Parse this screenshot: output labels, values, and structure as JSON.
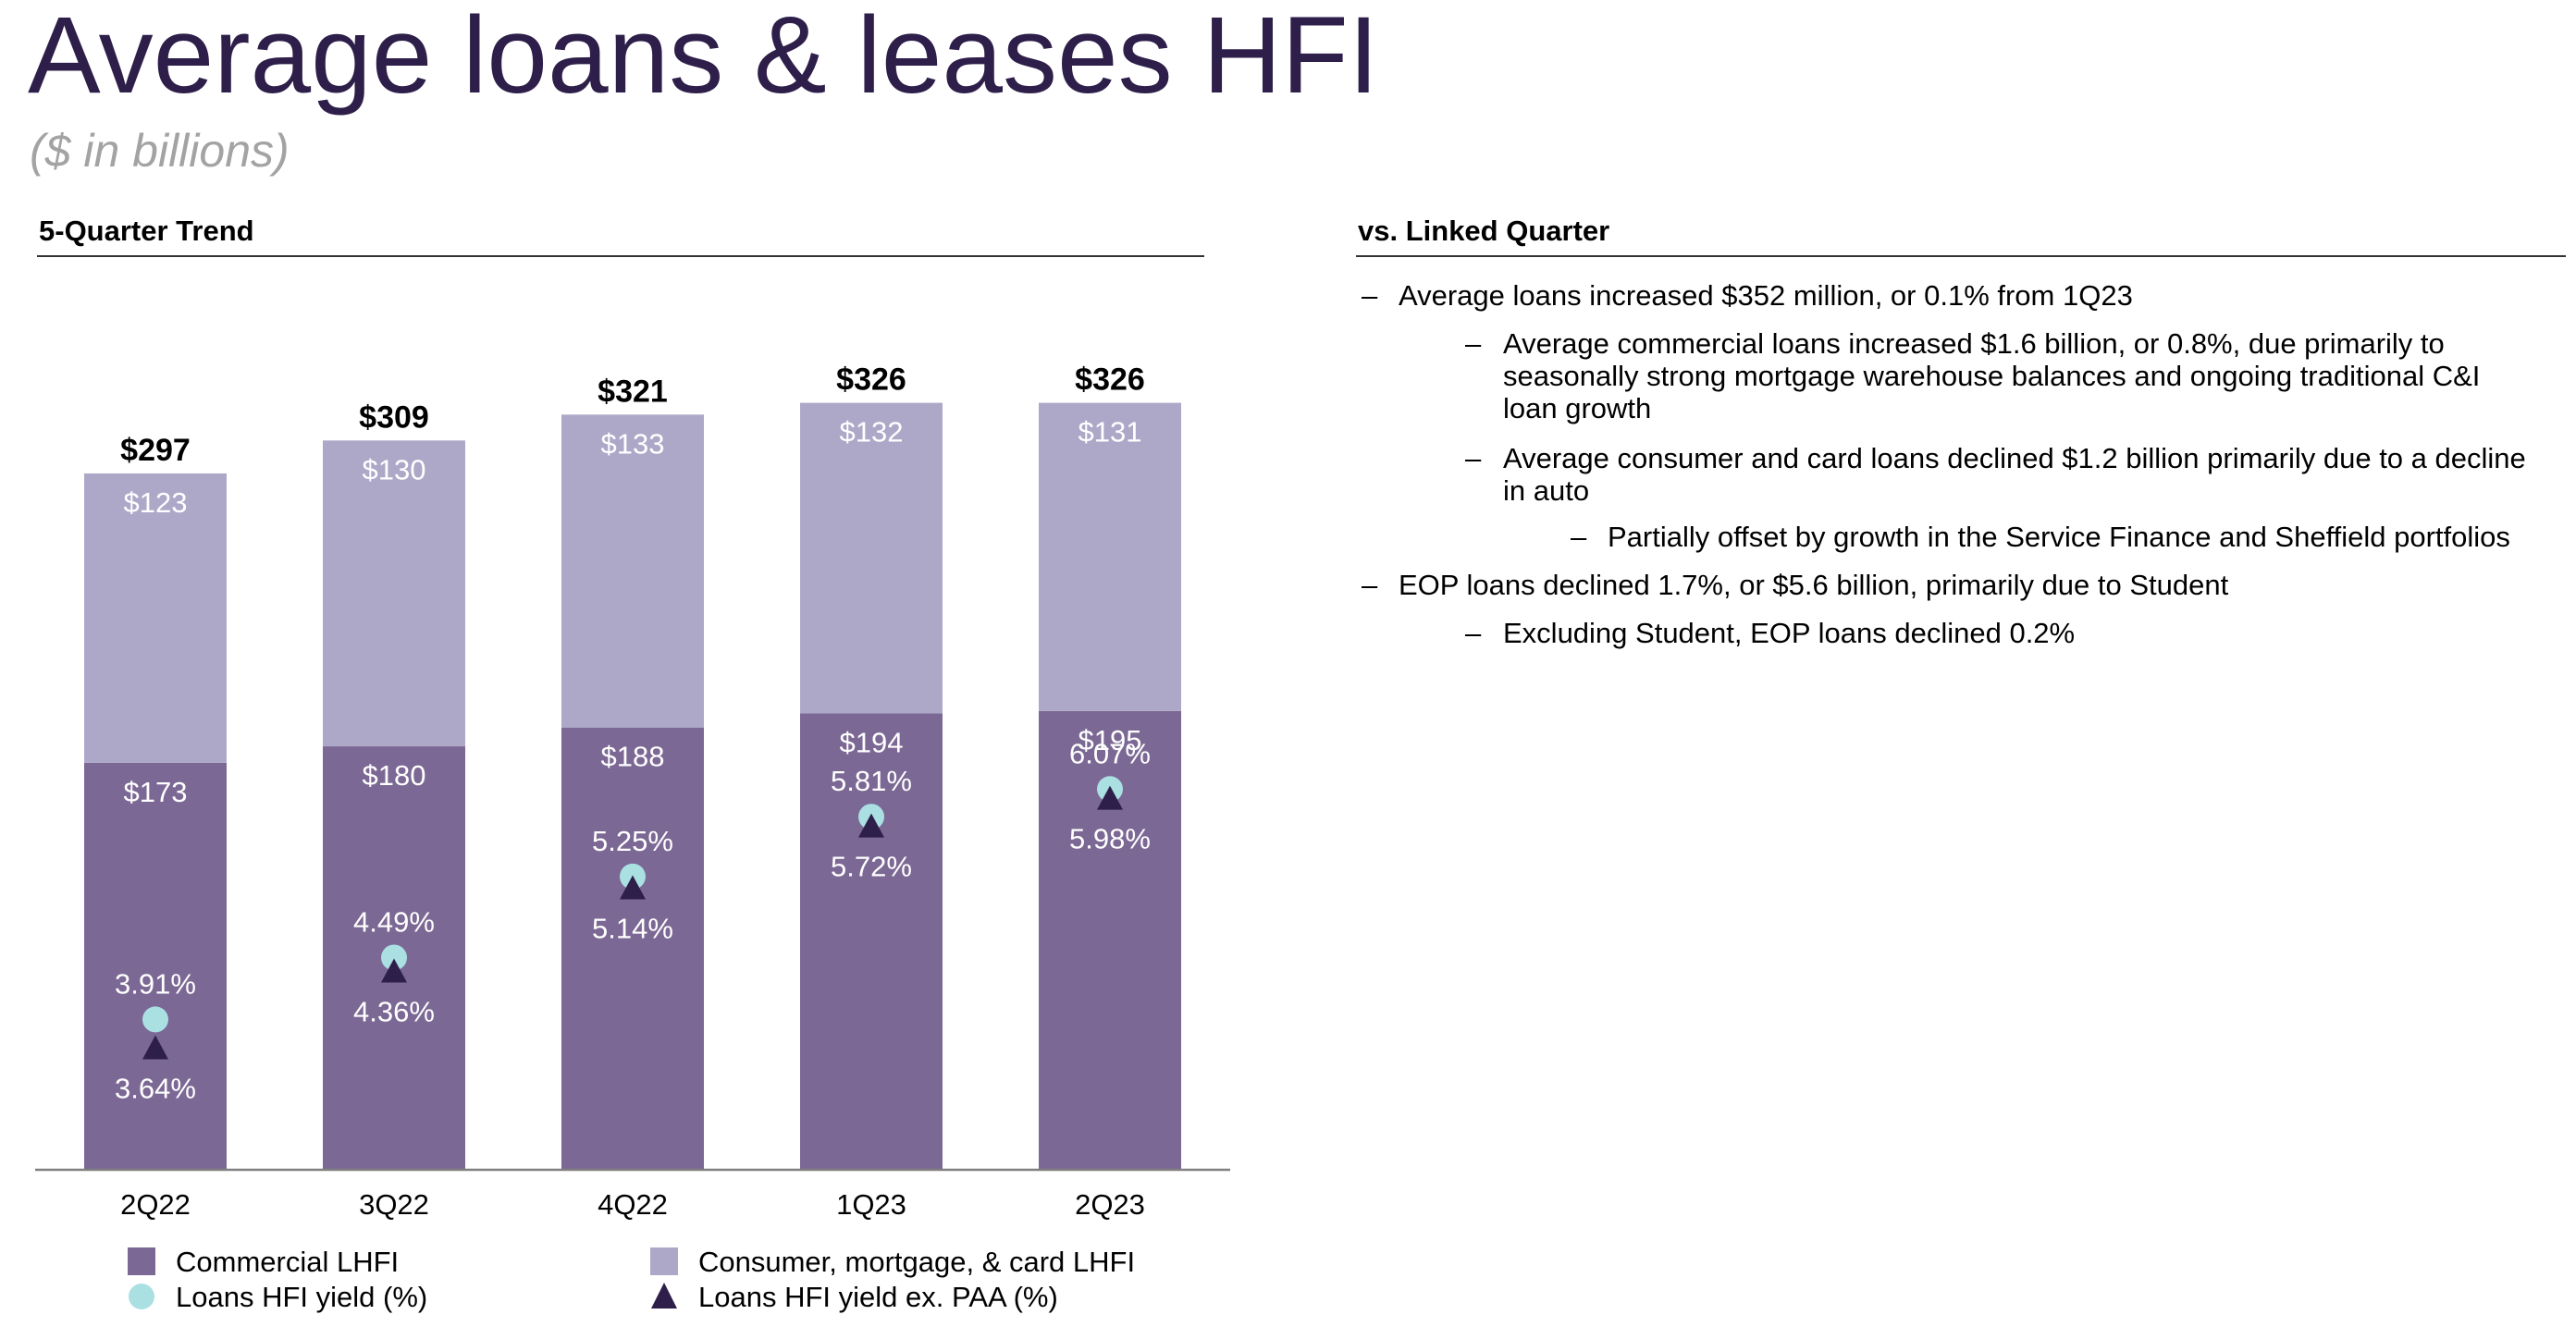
{
  "header": {
    "title": "Average loans & leases HFI",
    "subtitle": "($ in billions)"
  },
  "left_panel": {
    "heading": "5-Quarter Trend"
  },
  "right_panel": {
    "heading": "vs. Linked Quarter",
    "bullets": [
      {
        "level": 1,
        "marker": "–",
        "lines": [
          "Average loans increased $352 million, or 0.1% from 1Q23"
        ]
      },
      {
        "level": 2,
        "marker": "–",
        "lines": [
          "Average commercial loans increased $1.6 billion, or 0.8%, due primarily to",
          "seasonally strong mortgage warehouse balances and ongoing traditional C&I",
          "loan growth"
        ]
      },
      {
        "level": 2,
        "marker": "–",
        "lines": [
          "Average consumer and card loans declined $1.2 billion primarily due to a decline",
          "in auto"
        ]
      },
      {
        "level": 3,
        "marker": "–",
        "lines": [
          "Partially offset by growth in the Service Finance and Sheffield portfolios"
        ]
      },
      {
        "level": 1,
        "marker": "–",
        "lines": [
          "EOP loans declined 1.7%, or $5.6 billion, primarily due to Student"
        ]
      },
      {
        "level": 2,
        "marker": "–",
        "lines": [
          "Excluding Student, EOP loans declined 0.2%"
        ]
      }
    ]
  },
  "chart_data": {
    "type": "bar",
    "stacked": true,
    "categories": [
      "2Q22",
      "3Q22",
      "4Q22",
      "1Q23",
      "2Q23"
    ],
    "series": [
      {
        "name": "Commercial LHFI",
        "values": [
          173,
          180,
          188,
          194,
          195
        ],
        "labels": [
          "$173",
          "$180",
          "$188",
          "$194",
          "$195"
        ],
        "color": "#7b6894"
      },
      {
        "name": "Consumer, mortgage, & card LHFI",
        "values": [
          123,
          130,
          133,
          132,
          131
        ],
        "labels": [
          "$123",
          "$130",
          "$133",
          "$132",
          "$131"
        ],
        "color": "#ada8c8"
      }
    ],
    "totals": {
      "values": [
        297,
        309,
        321,
        326,
        326
      ],
      "labels": [
        "$297",
        "$309",
        "$321",
        "$326",
        "$326"
      ]
    },
    "markers": [
      {
        "name": "Loans HFI yield (%)",
        "shape": "circle",
        "color": "#abe0e3",
        "values": [
          3.91,
          4.49,
          5.25,
          5.81,
          6.07
        ],
        "labels": [
          "3.91%",
          "4.49%",
          "5.25%",
          "5.81%",
          "6.07%"
        ]
      },
      {
        "name": "Loans HFI yield ex. PAA (%)",
        "shape": "triangle",
        "color": "#2e1f4a",
        "values": [
          3.64,
          4.36,
          5.14,
          5.72,
          5.98
        ],
        "labels": [
          "3.64%",
          "4.36%",
          "5.14%",
          "5.72%",
          "5.98%"
        ]
      }
    ],
    "ylim": [
      0,
      340
    ],
    "marker_ylim": [
      2.5,
      10
    ],
    "grid": false,
    "legend_position": "bottom"
  }
}
